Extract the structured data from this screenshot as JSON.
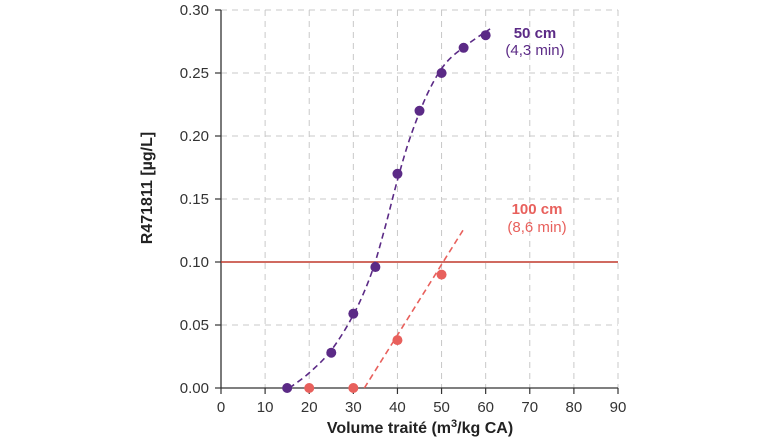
{
  "chart_data": {
    "type": "scatter",
    "xlabel_prefix": "Volume traité (m",
    "xlabel_sup": "3",
    "xlabel_suffix": "/kg CA)",
    "ylabel": "R471811 [µg/L]",
    "xlim": [
      0,
      90
    ],
    "ylim": [
      0,
      0.3
    ],
    "xticks": [
      "0",
      "10",
      "20",
      "30",
      "40",
      "50",
      "60",
      "70",
      "80",
      "90"
    ],
    "yticks": [
      "0.00",
      "0.05",
      "0.10",
      "0.15",
      "0.20",
      "0.25",
      "0.30"
    ],
    "grid": true,
    "reference_line": {
      "y": 0.1,
      "color": "#c0392b"
    },
    "series": [
      {
        "name": "50 cm",
        "subtitle": "(4,3 min)",
        "color": "#5b2a86",
        "points": [
          {
            "x": 15,
            "y": 0.0
          },
          {
            "x": 25,
            "y": 0.028
          },
          {
            "x": 30,
            "y": 0.059
          },
          {
            "x": 35,
            "y": 0.096
          },
          {
            "x": 40,
            "y": 0.17
          },
          {
            "x": 45,
            "y": 0.22
          },
          {
            "x": 50,
            "y": 0.25
          },
          {
            "x": 55,
            "y": 0.27
          },
          {
            "x": 60,
            "y": 0.28
          }
        ],
        "fit": [
          {
            "x": 15.5,
            "y": 0.0
          },
          {
            "x": 20,
            "y": 0.012
          },
          {
            "x": 25,
            "y": 0.03
          },
          {
            "x": 30,
            "y": 0.058
          },
          {
            "x": 34,
            "y": 0.09
          },
          {
            "x": 37,
            "y": 0.125
          },
          {
            "x": 40,
            "y": 0.165
          },
          {
            "x": 43,
            "y": 0.2
          },
          {
            "x": 47,
            "y": 0.235
          },
          {
            "x": 51,
            "y": 0.258
          },
          {
            "x": 56,
            "y": 0.273
          },
          {
            "x": 61,
            "y": 0.285
          }
        ]
      },
      {
        "name": "100 cm",
        "subtitle": "(8,6 min)",
        "color": "#e8605c",
        "points": [
          {
            "x": 20,
            "y": 0.0
          },
          {
            "x": 30,
            "y": 0.0
          },
          {
            "x": 40,
            "y": 0.038
          },
          {
            "x": 50,
            "y": 0.09
          }
        ],
        "fit": [
          {
            "x": 32.5,
            "y": 0.0
          },
          {
            "x": 55,
            "y": 0.126
          }
        ]
      }
    ]
  }
}
